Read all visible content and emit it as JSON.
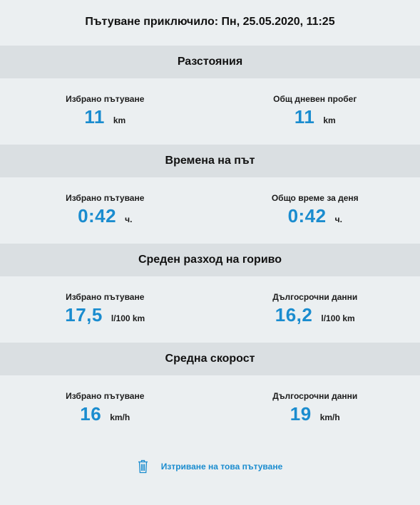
{
  "header": {
    "title": "Пътуване приключило: Пн, 25.05.2020, 11:25"
  },
  "sections": [
    {
      "title": "Разстояния",
      "left": {
        "label": "Избрано пътуване",
        "value": "11",
        "unit": "km"
      },
      "right": {
        "label": "Общ дневен пробег",
        "value": "11",
        "unit": "km"
      }
    },
    {
      "title": "Времена на път",
      "left": {
        "label": "Избрано пътуване",
        "value": "0:42",
        "unit": "ч."
      },
      "right": {
        "label": "Общо време за деня",
        "value": "0:42",
        "unit": "ч."
      }
    },
    {
      "title": "Среден разход на гориво",
      "left": {
        "label": "Избрано пътуване",
        "value": "17,5",
        "unit": "l/100 km"
      },
      "right": {
        "label": "Дългосрочни данни",
        "value": "16,2",
        "unit": "l/100 km"
      }
    },
    {
      "title": "Средна скорост",
      "left": {
        "label": "Избрано пътуване",
        "value": "16",
        "unit": "km/h"
      },
      "right": {
        "label": "Дългосрочни данни",
        "value": "19",
        "unit": "km/h"
      }
    }
  ],
  "actions": {
    "delete_label": "Изтриване на това пътуване",
    "delete_icon": "trash-icon"
  },
  "colors": {
    "accent": "#1a8ccf",
    "background": "#ebeff1",
    "section_header": "#dadfe2"
  }
}
